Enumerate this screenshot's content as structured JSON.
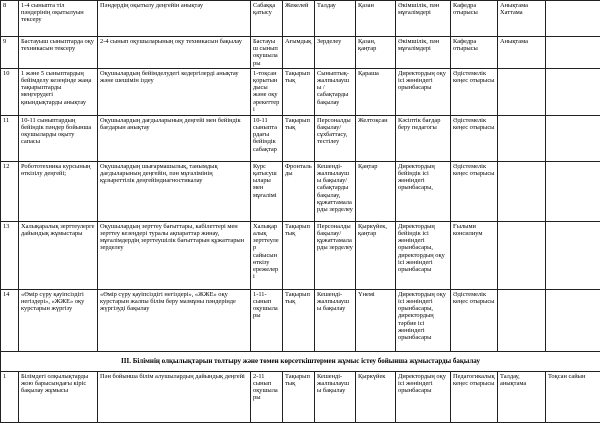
{
  "table": {
    "rows": [
      [
        "8",
        "1-4 сыныпта тіл пәндерінің оқытылуын тексеру",
        "Пәндердің оқытылу деңгейін анықтау",
        "Сабаққа қатысу",
        "Жекелей",
        "Талдау",
        "Қазан",
        "Әкімшілік, пән мұғалімдері",
        "Кафедра отырысы",
        "Анықтама Хаттама"
      ],
      [
        "9",
        "Бастауыш сыныптарда оқу техникасын тексеру",
        "2-4 сынып оқушыларының оқу техникасын бақылау",
        "Бастауыш сынып оқушылары",
        "Ағымдық",
        "Зерделеу",
        "Қазан, қаңтар",
        "Әкімшілік, пән мұғалімдері",
        "Кафедра отырысы",
        "Анықтама"
      ],
      [
        "10",
        "1 және 5 сыныптардың бейімделу кезеңінде жаңа тақырыптарды меңгерудегі қиындықтарды анықтау",
        "Оқушылардың бейімделудегі кедергілерді анықтау және шешімін іздеу",
        "1-тоқсан қорытындысы және оқу әрекеттері",
        "Тақырыптық",
        "Сыныптық-жалпылаушы / сабақтарды бақылау",
        "Қараша",
        "Директордың оқу ісі жөніндегі орынбасары",
        "Әдістемелік кеңес отырысы"
      ],
      [
        "11",
        "10-11 сыныптардың бейіндік пәндер бойынша оқушыларды оқыту сапасы",
        "Оқушылардың дағдыларының деңгейі мен бейіндік бағдарын анықтау",
        "10-11 сыныптардағы бейіндік сабақтар",
        "Тақырыптық",
        "Персоналды бақылау/ сұхбаттасу, тестілеу",
        "Желтоқсан",
        "Кәсіптік бағдар беру педагогы",
        "Әдістемелік кеңес отырысы"
      ],
      [
        "12",
        "Робототехника курсының өткізілу деңгейі;",
        "Оқушылардың шығармашылық, танымдық дағдыларының деңгейін, пән мұғалімінің құзыреттілік деңгейіндиагностикалау",
        "Курс қатысушылары мен мұғалімі",
        "Фронтальды",
        "Кешенді-жалпылаушы бақылау/ сабақтарды бақылау, құжаттамаларды зерделеу",
        "Қаңтар",
        "Директордың бейіндік ісі жөніндегі орынбасары,",
        "Әдістемелік кеңес отырысы"
      ],
      [
        "13",
        "Халықаралық зерттеулерге дайындық жұмыстары",
        "Оқушылардың зерттеу бағыттары, кабілеттері мен зерттеу кезеңдері туралы ақпараттар жинау, мұғалімдердің зерттеушілік бағыттарын құжаттарын зерделеу",
        "Халықаралық зерттеулер сайысын өткізу ережелері",
        "Тақырыптық",
        "Персоналды бақылау/ құжаттамаларды зерделеу",
        "Қыркүйек, қаңтар",
        "Директордың бейіндік ісі жөніндегі орынбасары, директордың оқу ісі жөніндегі орынбасары",
        "Ғылыми консилиум"
      ],
      [
        "14",
        "«Өмір сүру қауіпсіздігі негіздері», «ЖЖЕ» оқу курстарын жүргізу",
        "«Өмір сүру қауіпсіздігі негіздері», «ЖЖЕ» оқу курстарын жалпы білім беру мазмұны пәндерінде жүргізуді бақылау",
        "1-11-сынып оқушылары",
        "Тақырыптық",
        "Кешенді-жалпылаушы бақылау",
        "Үнемі",
        "Директордың оқу ісі жөніндегі орынбасары, директордың тәрбие ісі жөніндегі орынбасары",
        "Әдістемелік кеңес отырысы"
      ]
    ],
    "section": "III. Білімнің олқылықтарын толтыру және төмен көрсеткіштермен жұмыс істеу бойынша жұмыстарды бақылау",
    "last_row": [
      "1",
      "Білімдегі олқылықтарды жою барысындағы кіріс бақылау жұмысы",
      "Пән бойынша білім алушылардың дайындық деңгейі",
      "2-11 сынып оқушылары",
      "Тақырыптық",
      "Кешенді-жалпылаушы бақылау",
      "Қыркүйек",
      "Директордың оқу ісі жөніндегі орынбасары",
      "Педагогикалық кеңес отырысы",
      "Талдау, анықтама",
      "Тоқсан сайын"
    ]
  }
}
